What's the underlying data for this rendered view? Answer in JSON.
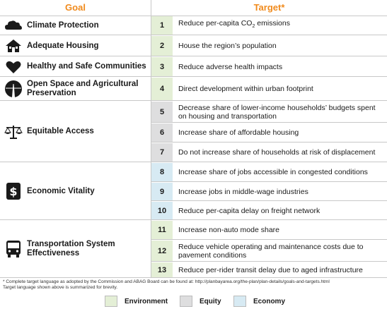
{
  "header": {
    "goal": "Goal",
    "target": "Target*"
  },
  "goals": [
    {
      "label": "Climate Protection",
      "icon": "cloud-icon"
    },
    {
      "label": "Adequate Housing",
      "icon": "house-icon"
    },
    {
      "label": "Healthy and Safe Communities",
      "icon": "heart-icon"
    },
    {
      "label": "Open Space and Agricultural Preservation",
      "icon": "road-fields-icon"
    },
    {
      "label": "Equitable Access",
      "icon": "scales-icon"
    },
    {
      "label": "Economic Vitality",
      "icon": "dollar-icon"
    },
    {
      "label": "Transportation System Effectiveness",
      "icon": "bus-icon"
    }
  ],
  "targets": [
    {
      "num": "1",
      "text_pre": "Reduce per-capita CO",
      "text_sub": "2",
      "text_post": " emissions",
      "category": "env"
    },
    {
      "num": "2",
      "text": "House the region’s population",
      "category": "env"
    },
    {
      "num": "3",
      "text": "Reduce adverse health impacts",
      "category": "env"
    },
    {
      "num": "4",
      "text": "Direct development within urban footprint",
      "category": "env"
    },
    {
      "num": "5",
      "text": "Decrease share of lower-income households’ budgets spent on housing and transportation",
      "category": "eq"
    },
    {
      "num": "6",
      "text": "Increase share of affordable housing",
      "category": "eq"
    },
    {
      "num": "7",
      "text": "Do not increase share of households at risk of displacement",
      "category": "eq"
    },
    {
      "num": "8",
      "text": "Increase share of jobs accessible in congested conditions",
      "category": "eco"
    },
    {
      "num": "9",
      "text": "Increase jobs in middle-wage industries",
      "category": "eco"
    },
    {
      "num": "10",
      "text": "Reduce per-capita delay on freight network",
      "category": "eco"
    },
    {
      "num": "11",
      "text": "Increase non-auto mode share",
      "category": "env"
    },
    {
      "num": "12",
      "text": "Reduce vehicle operating and maintenance costs due to pavement conditions",
      "category": "env"
    },
    {
      "num": "13",
      "text": "Reduce per-rider transit delay due to aged infrastructure",
      "category": "env"
    }
  ],
  "footnote": {
    "line1": "* Complete target language as adopted by the Commission and ABAG Board can be found at: http://planbayarea.org/the-plan/plan-details/goals-and-targets.html",
    "line2": "Target language shown above is summarized for brevity."
  },
  "legend": [
    {
      "label": "Environment",
      "color": "#e4efd6"
    },
    {
      "label": "Equity",
      "color": "#dededf"
    },
    {
      "label": "Economy",
      "color": "#d7eaf3"
    }
  ]
}
